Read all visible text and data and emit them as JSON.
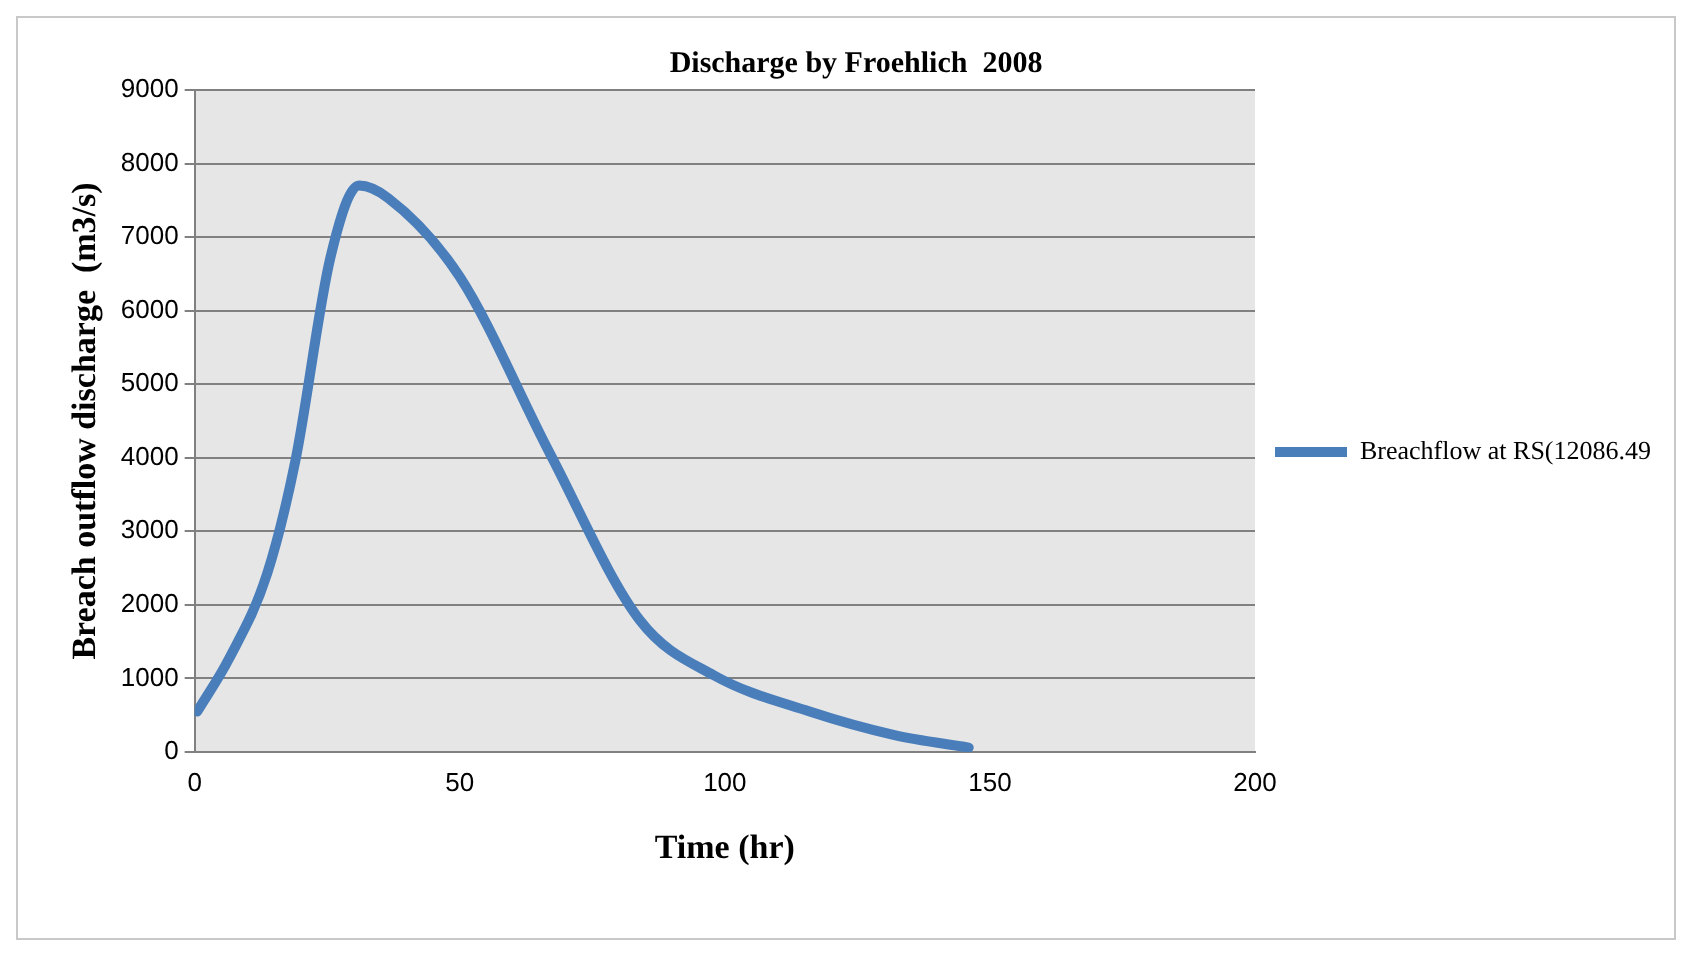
{
  "chart_data": {
    "type": "line",
    "title": "Discharge by Froehlich  2008",
    "xlabel": "Time (hr)",
    "ylabel": "Breach outflow discharge  (m3/s)",
    "xlim": [
      0,
      200
    ],
    "xticks": [
      0,
      50,
      100,
      150,
      200
    ],
    "ylim": [
      0,
      9000
    ],
    "yticks": [
      0,
      1000,
      2000,
      3000,
      4000,
      5000,
      6000,
      7000,
      8000,
      9000
    ],
    "grid": "y",
    "legend": "right",
    "marker": "none",
    "line_style": "solid",
    "series": [
      {
        "name": "Breachflow at RS(12086.49",
        "color": "#4a7ebb",
        "x": [
          0.5,
          6.5,
          13.7,
          19,
          25.6,
          31,
          36.5,
          50,
          67,
          84,
          98,
          116,
          132,
          146
        ],
        "values": [
          550,
          1270,
          2430,
          3960,
          6720,
          7700,
          7530,
          6460,
          4060,
          1790,
          1040,
          550,
          230,
          60
        ]
      }
    ]
  }
}
